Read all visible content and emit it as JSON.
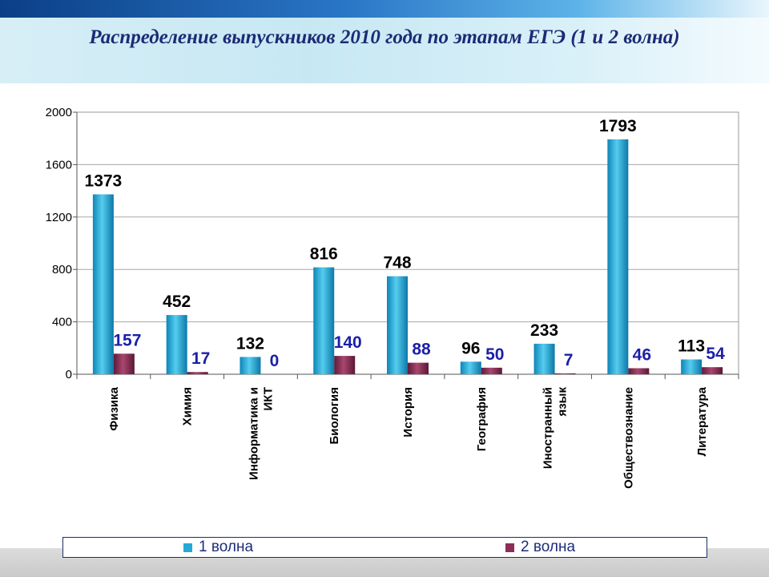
{
  "slide": {
    "title": "Распределение выпускников 2010 года по этапам ЕГЭ (1 и 2 волна)"
  },
  "colors": {
    "series1": "#27a9d6",
    "series2": "#8b2f55",
    "label1": "#000000",
    "label2": "#1b1fa8"
  },
  "chart_data": {
    "type": "bar",
    "title": "",
    "xlabel": "",
    "ylabel": "",
    "ylim": [
      0,
      2000
    ],
    "yticks": [
      0,
      400,
      800,
      1200,
      1600,
      2000
    ],
    "grid": true,
    "legend_position": "bottom",
    "categories": [
      "Физика",
      "Химия",
      "Информатика и ИКТ",
      "Биология",
      "История",
      "География",
      "Иностранный язык",
      "Обществознание",
      "Литература"
    ],
    "series": [
      {
        "name": "1 волна",
        "values": [
          1373,
          452,
          132,
          816,
          748,
          96,
          233,
          1793,
          113
        ]
      },
      {
        "name": "2 волна",
        "values": [
          157,
          17,
          0,
          140,
          88,
          50,
          7,
          46,
          54
        ]
      }
    ]
  }
}
